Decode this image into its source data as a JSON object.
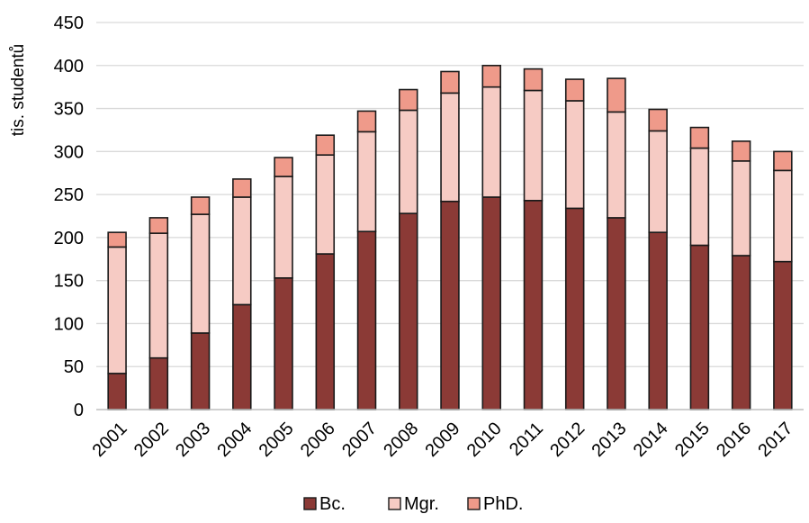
{
  "chart_data": {
    "type": "bar",
    "stacked": true,
    "ylabel": "tis. studentů",
    "ylim": [
      0,
      450
    ],
    "yticks": [
      0,
      50,
      100,
      150,
      200,
      250,
      300,
      350,
      400,
      450
    ],
    "grid": true,
    "legend_position": "bottom",
    "categories": [
      "2001",
      "2002",
      "2003",
      "2004",
      "2005",
      "2006",
      "2007",
      "2008",
      "2009",
      "2010",
      "2011",
      "2012",
      "2013",
      "2014",
      "2015",
      "2016",
      "2017"
    ],
    "series": [
      {
        "name": "Bc.",
        "color": "#8b3a36",
        "values": [
          42,
          60,
          89,
          122,
          153,
          181,
          207,
          228,
          242,
          247,
          243,
          234,
          223,
          206,
          191,
          179,
          172
        ]
      },
      {
        "name": "Mgr.",
        "color": "#f6cbc4",
        "values": [
          147,
          145,
          138,
          125,
          118,
          115,
          116,
          120,
          126,
          128,
          128,
          125,
          123,
          118,
          113,
          110,
          106
        ]
      },
      {
        "name": "PhD.",
        "color": "#ef9a8a",
        "values": [
          17,
          18,
          20,
          21,
          22,
          23,
          24,
          24,
          25,
          25,
          25,
          25,
          39,
          25,
          24,
          23,
          22
        ]
      }
    ]
  }
}
